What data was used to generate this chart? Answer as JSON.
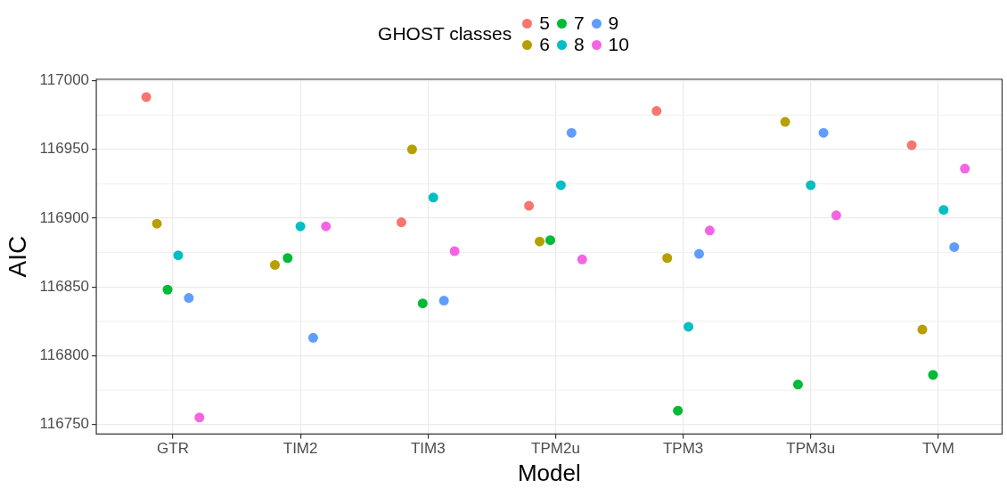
{
  "chart_data": {
    "type": "scatter",
    "xlabel": "Model",
    "ylabel": "AIC",
    "legend_title": "GHOST classes",
    "legend": "top",
    "grid": true,
    "marker": "circle",
    "categories": [
      "GTR",
      "TIM2",
      "TIM3",
      "TPM2u",
      "TPM3",
      "TPM3u",
      "TVM"
    ],
    "ylim": [
      116743,
      117001
    ],
    "yticks": [
      116750,
      116800,
      116850,
      116900,
      116950,
      117000
    ],
    "series": [
      {
        "name": "5",
        "color": "#f8766d",
        "values": [
          116988,
          null,
          116897,
          116909,
          116978,
          null,
          116953
        ]
      },
      {
        "name": "6",
        "color": "#b79f00",
        "values": [
          116896,
          116866,
          116950,
          116883,
          116871,
          116970,
          116819
        ]
      },
      {
        "name": "7",
        "color": "#00ba38",
        "values": [
          116848,
          116871,
          116838,
          116884,
          116760,
          116779,
          116786
        ]
      },
      {
        "name": "8",
        "color": "#00bfc4",
        "values": [
          116873,
          116894,
          116915,
          116924,
          116821,
          116924,
          116906
        ]
      },
      {
        "name": "9",
        "color": "#619cff",
        "values": [
          116842,
          116813,
          116840,
          116962,
          116874,
          116962,
          116879
        ]
      },
      {
        "name": "10",
        "color": "#f564e3",
        "values": [
          116755,
          116894,
          116876,
          116870,
          116891,
          116902,
          116936
        ]
      }
    ]
  }
}
